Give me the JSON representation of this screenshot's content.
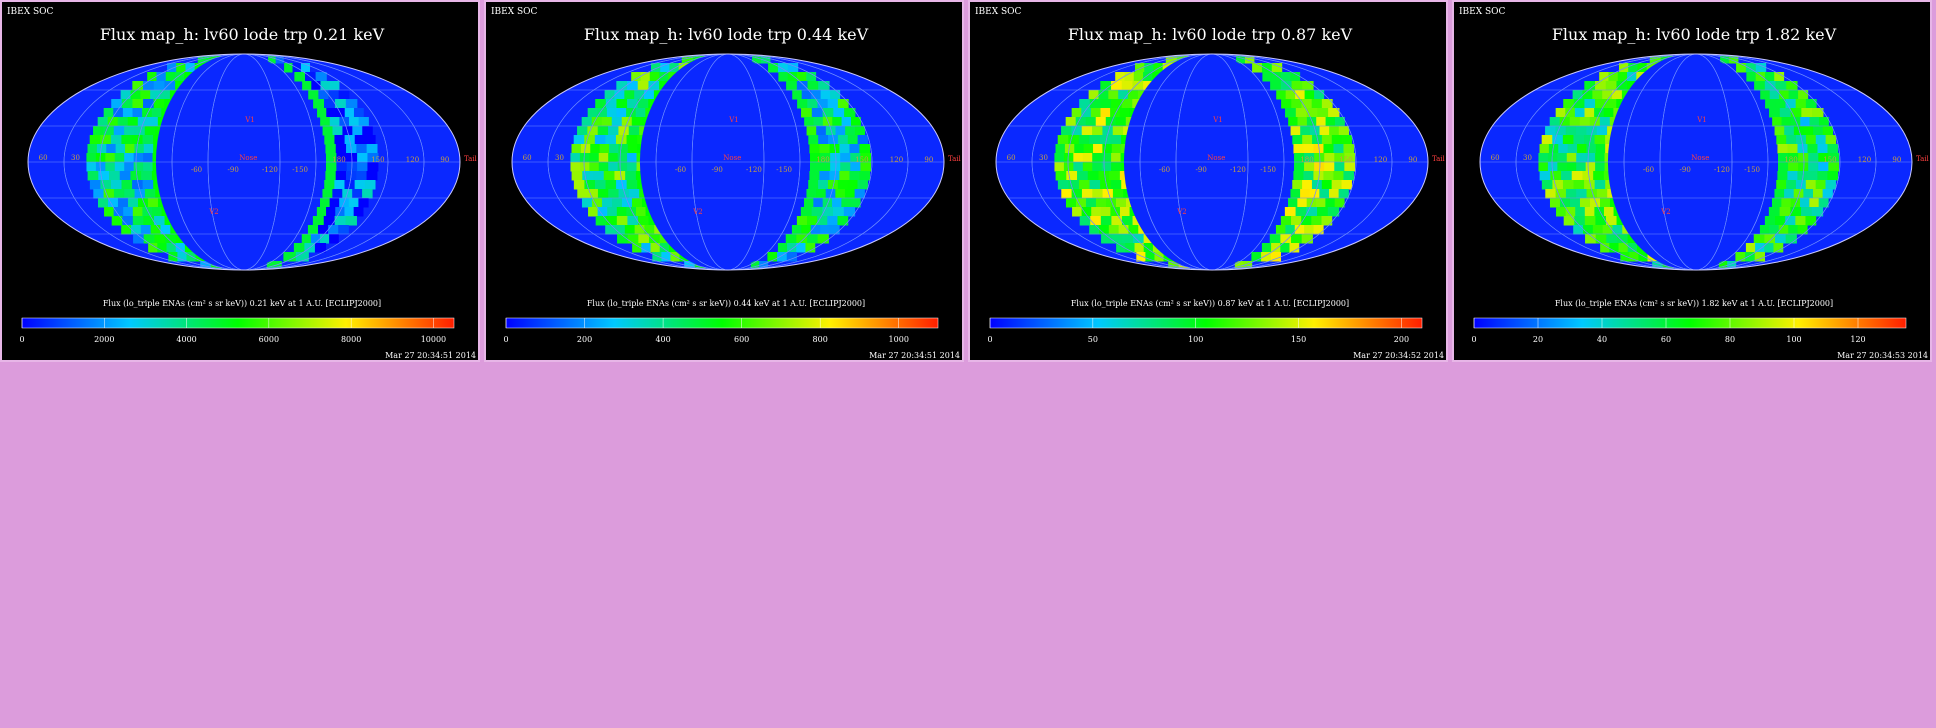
{
  "page": {
    "background": "#dc9cdc",
    "panel_border": "#e7b6e7"
  },
  "panels": [
    {
      "header": "IBEX SOC",
      "title": "Flux map_h: lv60 lode trp 0.21 keV",
      "colorbar_label": "Flux (lo_triple ENAs (cm² s sr keV)) 0.21 keV at 1 A.U. [ECLIPJ2000]",
      "colorbar_ticks": [
        "0",
        "2000",
        "4000",
        "6000",
        "8000",
        "10000"
      ],
      "timestamp": "Mar 27 20:34:51 2014",
      "map_labels": {
        "lon": [
          "60",
          "30",
          "0",
          "-30",
          "-60",
          "-90",
          "-120",
          "-150",
          "180",
          "150",
          "120",
          "90"
        ],
        "nose": "Nose",
        "tail": "Tail",
        "v1": "V1",
        "v2": "V2"
      }
    },
    {
      "header": "IBEX SOC",
      "title": "Flux map_h: lv60 lode trp 0.44 keV",
      "colorbar_label": "Flux (lo_triple ENAs (cm² s sr keV)) 0.44 keV at 1 A.U. [ECLIPJ2000]",
      "colorbar_ticks": [
        "0",
        "200",
        "400",
        "600",
        "800",
        "1000"
      ],
      "timestamp": "Mar 27 20:34:51 2014",
      "map_labels": {
        "lon": [
          "60",
          "30",
          "0",
          "-30",
          "-60",
          "-90",
          "-120",
          "-150",
          "180",
          "150",
          "120",
          "90"
        ],
        "nose": "Nose",
        "tail": "Tail",
        "v1": "V1",
        "v2": "V2"
      }
    },
    {
      "header": "IBEX SOC",
      "title": "Flux map_h: lv60 lode trp 0.87 keV",
      "colorbar_label": "Flux (lo_triple ENAs (cm² s sr keV)) 0.87 keV at 1 A.U. [ECLIPJ2000]",
      "colorbar_ticks": [
        "0",
        "50",
        "100",
        "150",
        "200"
      ],
      "timestamp": "Mar 27 20:34:52 2014",
      "map_labels": {
        "lon": [
          "60",
          "30",
          "0",
          "-30",
          "-60",
          "-90",
          "-120",
          "-150",
          "180",
          "150",
          "120",
          "90"
        ],
        "nose": "Nose",
        "tail": "Tail",
        "v1": "V1",
        "v2": "V2"
      }
    },
    {
      "header": "IBEX SOC",
      "title": "Flux map_h: lv60 lode trp 1.82 keV",
      "colorbar_label": "Flux (lo_triple ENAs (cm² s sr keV)) 1.82 keV at 1 A.U. [ECLIPJ2000]",
      "colorbar_ticks": [
        "0",
        "20",
        "40",
        "60",
        "80",
        "100",
        "120"
      ],
      "timestamp": "Mar 27 20:34:53 2014",
      "map_labels": {
        "lon": [
          "60",
          "30",
          "0",
          "-30",
          "-60",
          "-90",
          "-120",
          "-150",
          "180",
          "150",
          "120",
          "90"
        ],
        "nose": "Nose",
        "tail": "Tail",
        "v1": "V1",
        "v2": "V2"
      }
    }
  ],
  "chart_data": [
    {
      "type": "heatmap",
      "title": "Flux map_h: lv60 lode trp 0.21 keV",
      "projection": "mollweide",
      "colormap": "rainbow",
      "range": [
        0,
        10500
      ],
      "colorbar_ticks": [
        0,
        2000,
        4000,
        6000,
        8000,
        10000
      ],
      "colors": {
        "low": "#0000ff",
        "mid": "#00ff00",
        "high": "#ff0000"
      }
    },
    {
      "type": "heatmap",
      "title": "Flux map_h: lv60 lode trp 0.44 keV",
      "projection": "mollweide",
      "colormap": "rainbow",
      "range": [
        0,
        1100
      ],
      "colorbar_ticks": [
        0,
        200,
        400,
        600,
        800,
        1000
      ],
      "colors": {
        "low": "#0000ff",
        "mid": "#00ff00",
        "high": "#ff0000"
      }
    },
    {
      "type": "heatmap",
      "title": "Flux map_h: lv60 lode trp 0.87 keV",
      "projection": "mollweide",
      "colormap": "rainbow",
      "range": [
        0,
        210
      ],
      "colorbar_ticks": [
        0,
        50,
        100,
        150,
        200
      ],
      "colors": {
        "low": "#0000ff",
        "mid": "#00ff00",
        "high": "#ff0000"
      }
    },
    {
      "type": "heatmap",
      "title": "Flux map_h: lv60 lode trp 1.82 keV",
      "projection": "mollweide",
      "colormap": "rainbow",
      "range": [
        0,
        135
      ],
      "colorbar_ticks": [
        0,
        20,
        40,
        60,
        80,
        100,
        120
      ],
      "colors": {
        "low": "#0000ff",
        "mid": "#00ff00",
        "high": "#ff0000"
      }
    }
  ]
}
